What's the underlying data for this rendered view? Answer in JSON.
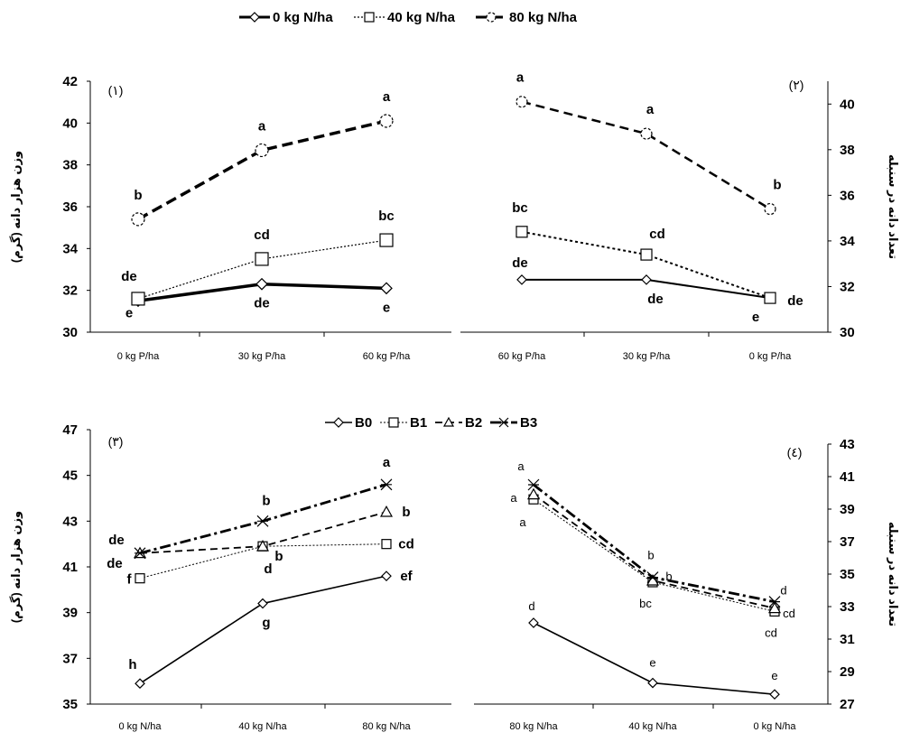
{
  "chart_data": [
    {
      "type": "line",
      "panel_label": "(١)",
      "categories": [
        "0 kg P/ha",
        "30 kg P/ha",
        "60 kg P/ha"
      ],
      "ylabel": "وزن هزار دانه (گرم)",
      "ylim": [
        30,
        42
      ],
      "yticks": [
        30,
        32,
        34,
        36,
        38,
        40,
        42
      ],
      "y_axis_side": "left",
      "grid": false,
      "series": [
        {
          "name": "0 kg N/ha",
          "values": [
            31.5,
            32.3,
            32.1
          ],
          "labels": [
            "e",
            "de",
            "e"
          ]
        },
        {
          "name": "40 kg N/ha",
          "values": [
            31.6,
            33.5,
            34.4
          ],
          "labels": [
            "de",
            "cd",
            "bc"
          ]
        },
        {
          "name": "80 kg N/ha",
          "values": [
            35.4,
            38.7,
            40.1
          ],
          "labels": [
            "b",
            "a",
            "a"
          ]
        }
      ]
    },
    {
      "type": "line",
      "panel_label": "(٢)",
      "categories": [
        "60 kg P/ha",
        "30 kg P/ha",
        "0 kg P/ha"
      ],
      "ylabel": "تعداد دانه در سنبله",
      "ylim": [
        30,
        41
      ],
      "yticks": [
        30,
        32,
        34,
        36,
        38,
        40
      ],
      "y_axis_side": "right",
      "grid": false,
      "series": [
        {
          "name": "0 kg N/ha",
          "values": [
            32.3,
            32.3,
            31.5
          ],
          "labels": [
            "de",
            "de",
            "e"
          ]
        },
        {
          "name": "40 kg N/ha",
          "values": [
            34.4,
            33.4,
            31.5
          ],
          "labels": [
            "bc",
            "cd",
            "de"
          ]
        },
        {
          "name": "80 kg N/ha",
          "values": [
            40.1,
            38.7,
            35.4
          ],
          "labels": [
            "a",
            "a",
            "b"
          ]
        }
      ]
    },
    {
      "type": "line",
      "panel_label": "(٣)",
      "categories": [
        "0 kg N/ha",
        "40 kg N/ha",
        "80 kg N/ha"
      ],
      "ylabel": "وزن هزار دانه (گرم)",
      "ylim": [
        35,
        47
      ],
      "yticks": [
        35,
        37,
        39,
        41,
        43,
        45,
        47
      ],
      "y_axis_side": "left",
      "grid": false,
      "series": [
        {
          "name": "B0",
          "values": [
            35.9,
            39.4,
            40.6
          ],
          "labels": [
            "h",
            "g",
            "ef"
          ]
        },
        {
          "name": "B1",
          "values": [
            40.5,
            41.9,
            42.0
          ],
          "labels": [
            "f",
            "d",
            "cd"
          ]
        },
        {
          "name": "B2",
          "values": [
            41.6,
            41.9,
            43.4
          ],
          "labels": [
            "de",
            "b",
            "b"
          ]
        },
        {
          "name": "B3",
          "values": [
            41.6,
            43.0,
            44.6
          ],
          "labels": [
            "de",
            "b",
            "a"
          ]
        }
      ]
    },
    {
      "type": "line",
      "panel_label": "(٤)",
      "categories": [
        "80 kg N/ha",
        "40 kg N/ha",
        "0 kg N/ha"
      ],
      "ylabel": "تعداد دانه در سنبله",
      "ylim": [
        27,
        43
      ],
      "yticks": [
        27,
        29,
        31,
        33,
        35,
        37,
        39,
        41,
        43
      ],
      "y_axis_side": "right",
      "grid": false,
      "series": [
        {
          "name": "B0",
          "values": [
            32.0,
            28.3,
            27.6
          ],
          "labels": [
            "d",
            "e",
            "e"
          ]
        },
        {
          "name": "B1",
          "values": [
            39.6,
            34.5,
            32.7
          ],
          "labels": [
            "a",
            "bc",
            "cd"
          ]
        },
        {
          "name": "B2",
          "values": [
            39.9,
            34.6,
            32.9
          ],
          "labels": [
            "a",
            "b",
            "cd"
          ]
        },
        {
          "name": "B3",
          "values": [
            40.5,
            34.8,
            33.3
          ],
          "labels": [
            "a",
            "b",
            "d"
          ]
        }
      ]
    }
  ],
  "legends": {
    "top": [
      "0 kg N/ha",
      "40 kg N/ha",
      "80 kg N/ha"
    ],
    "bottom": [
      "B0",
      "B1",
      "B2",
      "B3"
    ]
  },
  "styles": {
    "top": [
      {
        "color": "#000000",
        "width": 3.5,
        "dash": "",
        "marker": "diamond",
        "msize": 6
      },
      {
        "color": "#000000",
        "width": 1.2,
        "dash": "2 2",
        "marker": "square",
        "msize": 7
      },
      {
        "color": "#000000",
        "width": 3.5,
        "dash": "12 6",
        "marker": "circle",
        "msize": 7
      }
    ],
    "top_right": [
      {
        "color": "#000000",
        "width": 2,
        "dash": "",
        "marker": "diamond",
        "msize": 5
      },
      {
        "color": "#000000",
        "width": 2,
        "dash": "3 3",
        "marker": "square",
        "msize": 6
      },
      {
        "color": "#000000",
        "width": 2.5,
        "dash": "10 6",
        "marker": "circle",
        "msize": 6
      }
    ],
    "bottom": [
      {
        "color": "#000000",
        "width": 1.6,
        "dash": "",
        "marker": "diamond",
        "msize": 5
      },
      {
        "color": "#000000",
        "width": 1,
        "dash": "2 2",
        "marker": "square",
        "msize": 5
      },
      {
        "color": "#000000",
        "width": 1.8,
        "dash": "8 5",
        "marker": "triangle",
        "msize": 6
      },
      {
        "color": "#000000",
        "width": 2.8,
        "dash": "12 4 3 4",
        "marker": "xstar",
        "msize": 6
      }
    ]
  }
}
